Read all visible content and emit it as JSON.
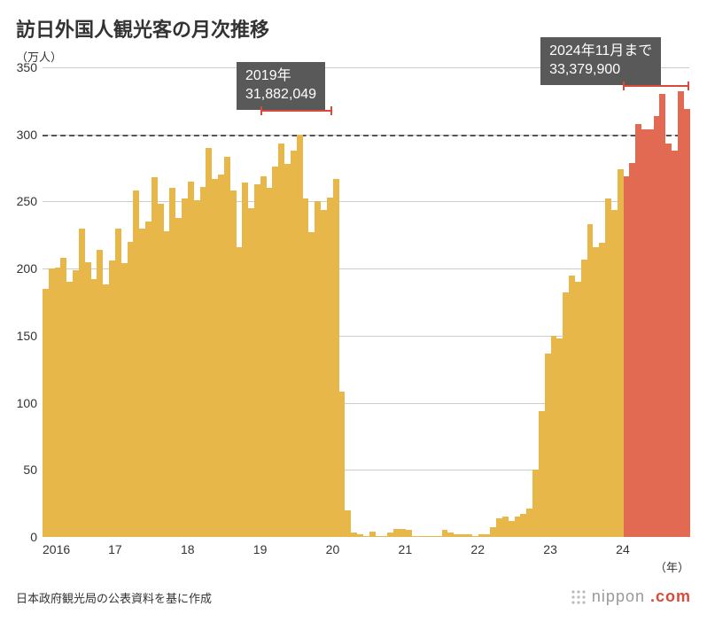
{
  "title": "訪日外国人観光客の月次推移",
  "y_axis": {
    "unit": "（万人）",
    "min": 0,
    "max": 350,
    "tick_step": 50,
    "ticks": [
      0,
      50,
      100,
      150,
      200,
      250,
      300,
      350
    ],
    "ref_line": 300
  },
  "x_axis": {
    "unit": "（年）",
    "tick_labels": [
      "2016",
      "17",
      "18",
      "19",
      "20",
      "21",
      "22",
      "23",
      "24"
    ],
    "tick_month_indices": [
      0,
      12,
      24,
      36,
      48,
      60,
      72,
      84,
      96
    ],
    "total_months": 107
  },
  "colors": {
    "bar_primary": "#e8b74a",
    "bar_highlight": "#e36a52",
    "grid": "#cccccc",
    "ref_dash": "#555555",
    "callout_bg": "#595959",
    "callout_text": "#ffffff",
    "bracket": "#d94a3a",
    "text": "#333333",
    "background": "#ffffff"
  },
  "callouts": {
    "c2019": {
      "line1": "2019年",
      "line2": "31,882,049",
      "month_start": 36,
      "month_end": 48
    },
    "c2024": {
      "line1": "2024年11月まで",
      "line2": "33,379,900",
      "month_start": 96,
      "month_end": 107
    }
  },
  "highlight_start_index": 96,
  "series_values": [
    185,
    200,
    201,
    208,
    190,
    199,
    230,
    205,
    192,
    214,
    188,
    206,
    230,
    204,
    220,
    258,
    230,
    235,
    268,
    248,
    228,
    260,
    238,
    252,
    265,
    251,
    261,
    290,
    267,
    270,
    283,
    258,
    216,
    264,
    245,
    263,
    269,
    260,
    276,
    293,
    278,
    288,
    300,
    252,
    227,
    250,
    244,
    253,
    267,
    108,
    20,
    3,
    2,
    1,
    4,
    1,
    1,
    3,
    6,
    6,
    5,
    1,
    1,
    1,
    1,
    1,
    5,
    3,
    2,
    2,
    2,
    1,
    2,
    2,
    7,
    14,
    15,
    12,
    15,
    17,
    21,
    50,
    94,
    137,
    150,
    148,
    182,
    195,
    190,
    207,
    233,
    216,
    219,
    252,
    244,
    274,
    269,
    279,
    308,
    304,
    304,
    314,
    330,
    293,
    288,
    332,
    319
  ],
  "footer_note": "日本政府観光局の公表資料を基に作成",
  "source": {
    "name": "nippon",
    "suffix": ".com"
  }
}
